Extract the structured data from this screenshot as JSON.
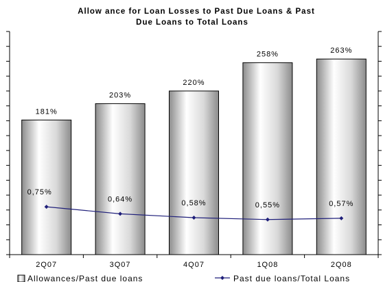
{
  "chart_data": {
    "type": "bar",
    "title": "Allowance for Loan Losses to Past Due Loans &  Past Due Loans to Total Loans",
    "title_lines": [
      "Allow ance for Loan Losses to Past Due Loans &  Past",
      "Due Loans to Total Loans"
    ],
    "categories": [
      "2Q07",
      "3Q07",
      "4Q07",
      "1Q08",
      "2Q08"
    ],
    "category_labels": [
      "2Q07",
      "3Q07",
      "4Q07",
      "1Q08",
      "2Q08"
    ],
    "series": [
      {
        "name": "Allowances/Past due loans",
        "type": "bar",
        "axis": "left",
        "values": [
          181,
          203,
          220,
          258,
          263
        ],
        "labels": [
          "181%",
          "203%",
          "220%",
          "258%",
          "263%"
        ],
        "color": "#d9d9d9"
      },
      {
        "name": "Past due loans/Total Loans",
        "type": "line",
        "axis": "right",
        "values": [
          0.75,
          0.64,
          0.58,
          0.55,
          0.57
        ],
        "labels": [
          "0,75%",
          "0,64%",
          "0,58%",
          "0,55%",
          "0,57%"
        ],
        "color": "#1f1f7a"
      }
    ],
    "legend": {
      "position": "bottom",
      "items": [
        "Allowances/Past due loans",
        "Past due loans/Total Loans"
      ]
    },
    "ylim_left": [
      0,
      300
    ],
    "ylim_right": [
      0,
      3.5
    ],
    "grid": false,
    "colors": {
      "bar": "#d9d9d9",
      "bar_edge": "#000000",
      "line": "#1f1f7a",
      "axis": "#000000"
    }
  }
}
